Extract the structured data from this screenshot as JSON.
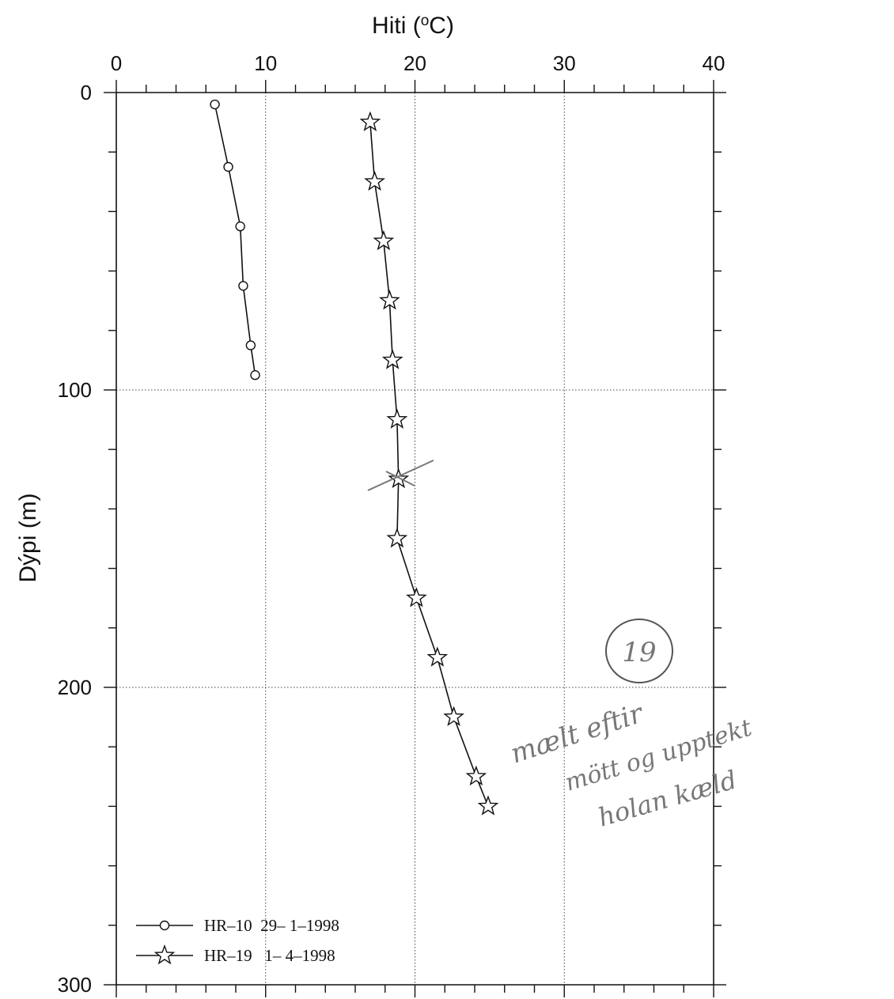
{
  "chart_data": {
    "type": "line",
    "title": "",
    "xlabel_prefix": "Hiti (",
    "xlabel_sup": "o",
    "xlabel_suffix": "C)",
    "ylabel": "Dýpi (m)",
    "xlim": [
      0,
      40
    ],
    "ylim": [
      0,
      300
    ],
    "y_inverted": true,
    "x_ticks": [
      "0",
      "10",
      "20",
      "30",
      "40"
    ],
    "y_ticks": [
      "0",
      "100",
      "200",
      "300"
    ],
    "grid": true,
    "legend_position": "bottom-left",
    "series": [
      {
        "name": "HR–10  29– 1–1998",
        "marker": "circle",
        "points": [
          [
            6.6,
            4
          ],
          [
            7.5,
            25
          ],
          [
            8.3,
            45
          ],
          [
            8.5,
            65
          ],
          [
            9.0,
            85
          ],
          [
            9.3,
            95
          ]
        ]
      },
      {
        "name": "HR–19   1– 4–1998",
        "marker": "star",
        "points": [
          [
            17.0,
            10
          ],
          [
            17.3,
            30
          ],
          [
            17.9,
            50
          ],
          [
            18.3,
            70
          ],
          [
            18.5,
            90
          ],
          [
            18.8,
            110
          ],
          [
            18.9,
            130
          ],
          [
            18.8,
            150
          ],
          [
            20.1,
            170
          ],
          [
            21.5,
            190
          ],
          [
            22.6,
            210
          ],
          [
            24.1,
            230
          ],
          [
            24.9,
            240
          ]
        ]
      }
    ],
    "annotations": {
      "circle_label": "19",
      "handwritten_note": [
        "mælt eftir",
        "mött og upptekt",
        "holan kæld"
      ]
    }
  }
}
